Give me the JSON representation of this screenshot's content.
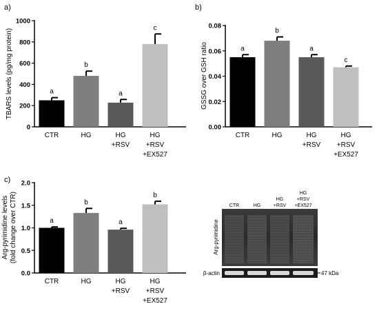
{
  "chart_data": [
    {
      "panel": "a)",
      "type": "bar",
      "ylabel": "TBARS levels (pg/mg protein)",
      "ylim": [
        0,
        1000
      ],
      "yticks": [
        "0",
        "200",
        "400",
        "600",
        "800",
        "1000"
      ],
      "categories": [
        [
          "CTR"
        ],
        [
          "HG"
        ],
        [
          "HG",
          "+RSV"
        ],
        [
          "HG",
          "+RSV",
          "+EX527"
        ]
      ],
      "values": [
        250,
        480,
        228,
        780
      ],
      "errors": [
        25,
        45,
        30,
        95
      ],
      "letters": [
        "a",
        "b",
        "a",
        "c"
      ],
      "colors": [
        "#000000",
        "#7f7f7f",
        "#595959",
        "#bfbfbf"
      ]
    },
    {
      "panel": "b)",
      "type": "bar",
      "ylabel": "GSSG over GSH ratio",
      "ylim": [
        0,
        0.08
      ],
      "yticks": [
        "0.00",
        "0.02",
        "0.04",
        "0.06",
        "0.08"
      ],
      "categories": [
        [
          "CTR"
        ],
        [
          "HG"
        ],
        [
          "HG",
          "+RSV"
        ],
        [
          "HG",
          "+RSV",
          "+EX527"
        ]
      ],
      "values": [
        0.055,
        0.068,
        0.055,
        0.047
      ],
      "errors": [
        0.002,
        0.003,
        0.002,
        0.001
      ],
      "letters": [
        "a",
        "b",
        "a",
        "c"
      ],
      "colors": [
        "#000000",
        "#7f7f7f",
        "#595959",
        "#bfbfbf"
      ]
    },
    {
      "panel": "c)",
      "type": "bar",
      "ylabel": [
        "Arg-pyrimidine levels",
        "(fold change over CTR)"
      ],
      "ylim": [
        0,
        2.0
      ],
      "yticks": [
        "0.0",
        "0.5",
        "1.0",
        "1.5",
        "2.0"
      ],
      "categories": [
        [
          "CTR"
        ],
        [
          "HG"
        ],
        [
          "HG",
          "+RSV"
        ],
        [
          "HG",
          "+RSV",
          "+EX527"
        ]
      ],
      "values": [
        1.0,
        1.33,
        0.96,
        1.52
      ],
      "errors": [
        0.02,
        0.1,
        0.03,
        0.07
      ],
      "letters": [
        "a",
        "b",
        "a",
        "b"
      ],
      "colors": [
        "#000000",
        "#7f7f7f",
        "#595959",
        "#bfbfbf"
      ]
    }
  ],
  "blot": {
    "lanes": [
      [
        "CTR"
      ],
      [
        "HG"
      ],
      [
        "HG",
        "+RSV"
      ],
      [
        "HG",
        "+RSV",
        "+EX527"
      ]
    ],
    "side_label": "Arg-pyrimidine",
    "actin_label": "β-actin",
    "kda_label": "47 kDa"
  }
}
